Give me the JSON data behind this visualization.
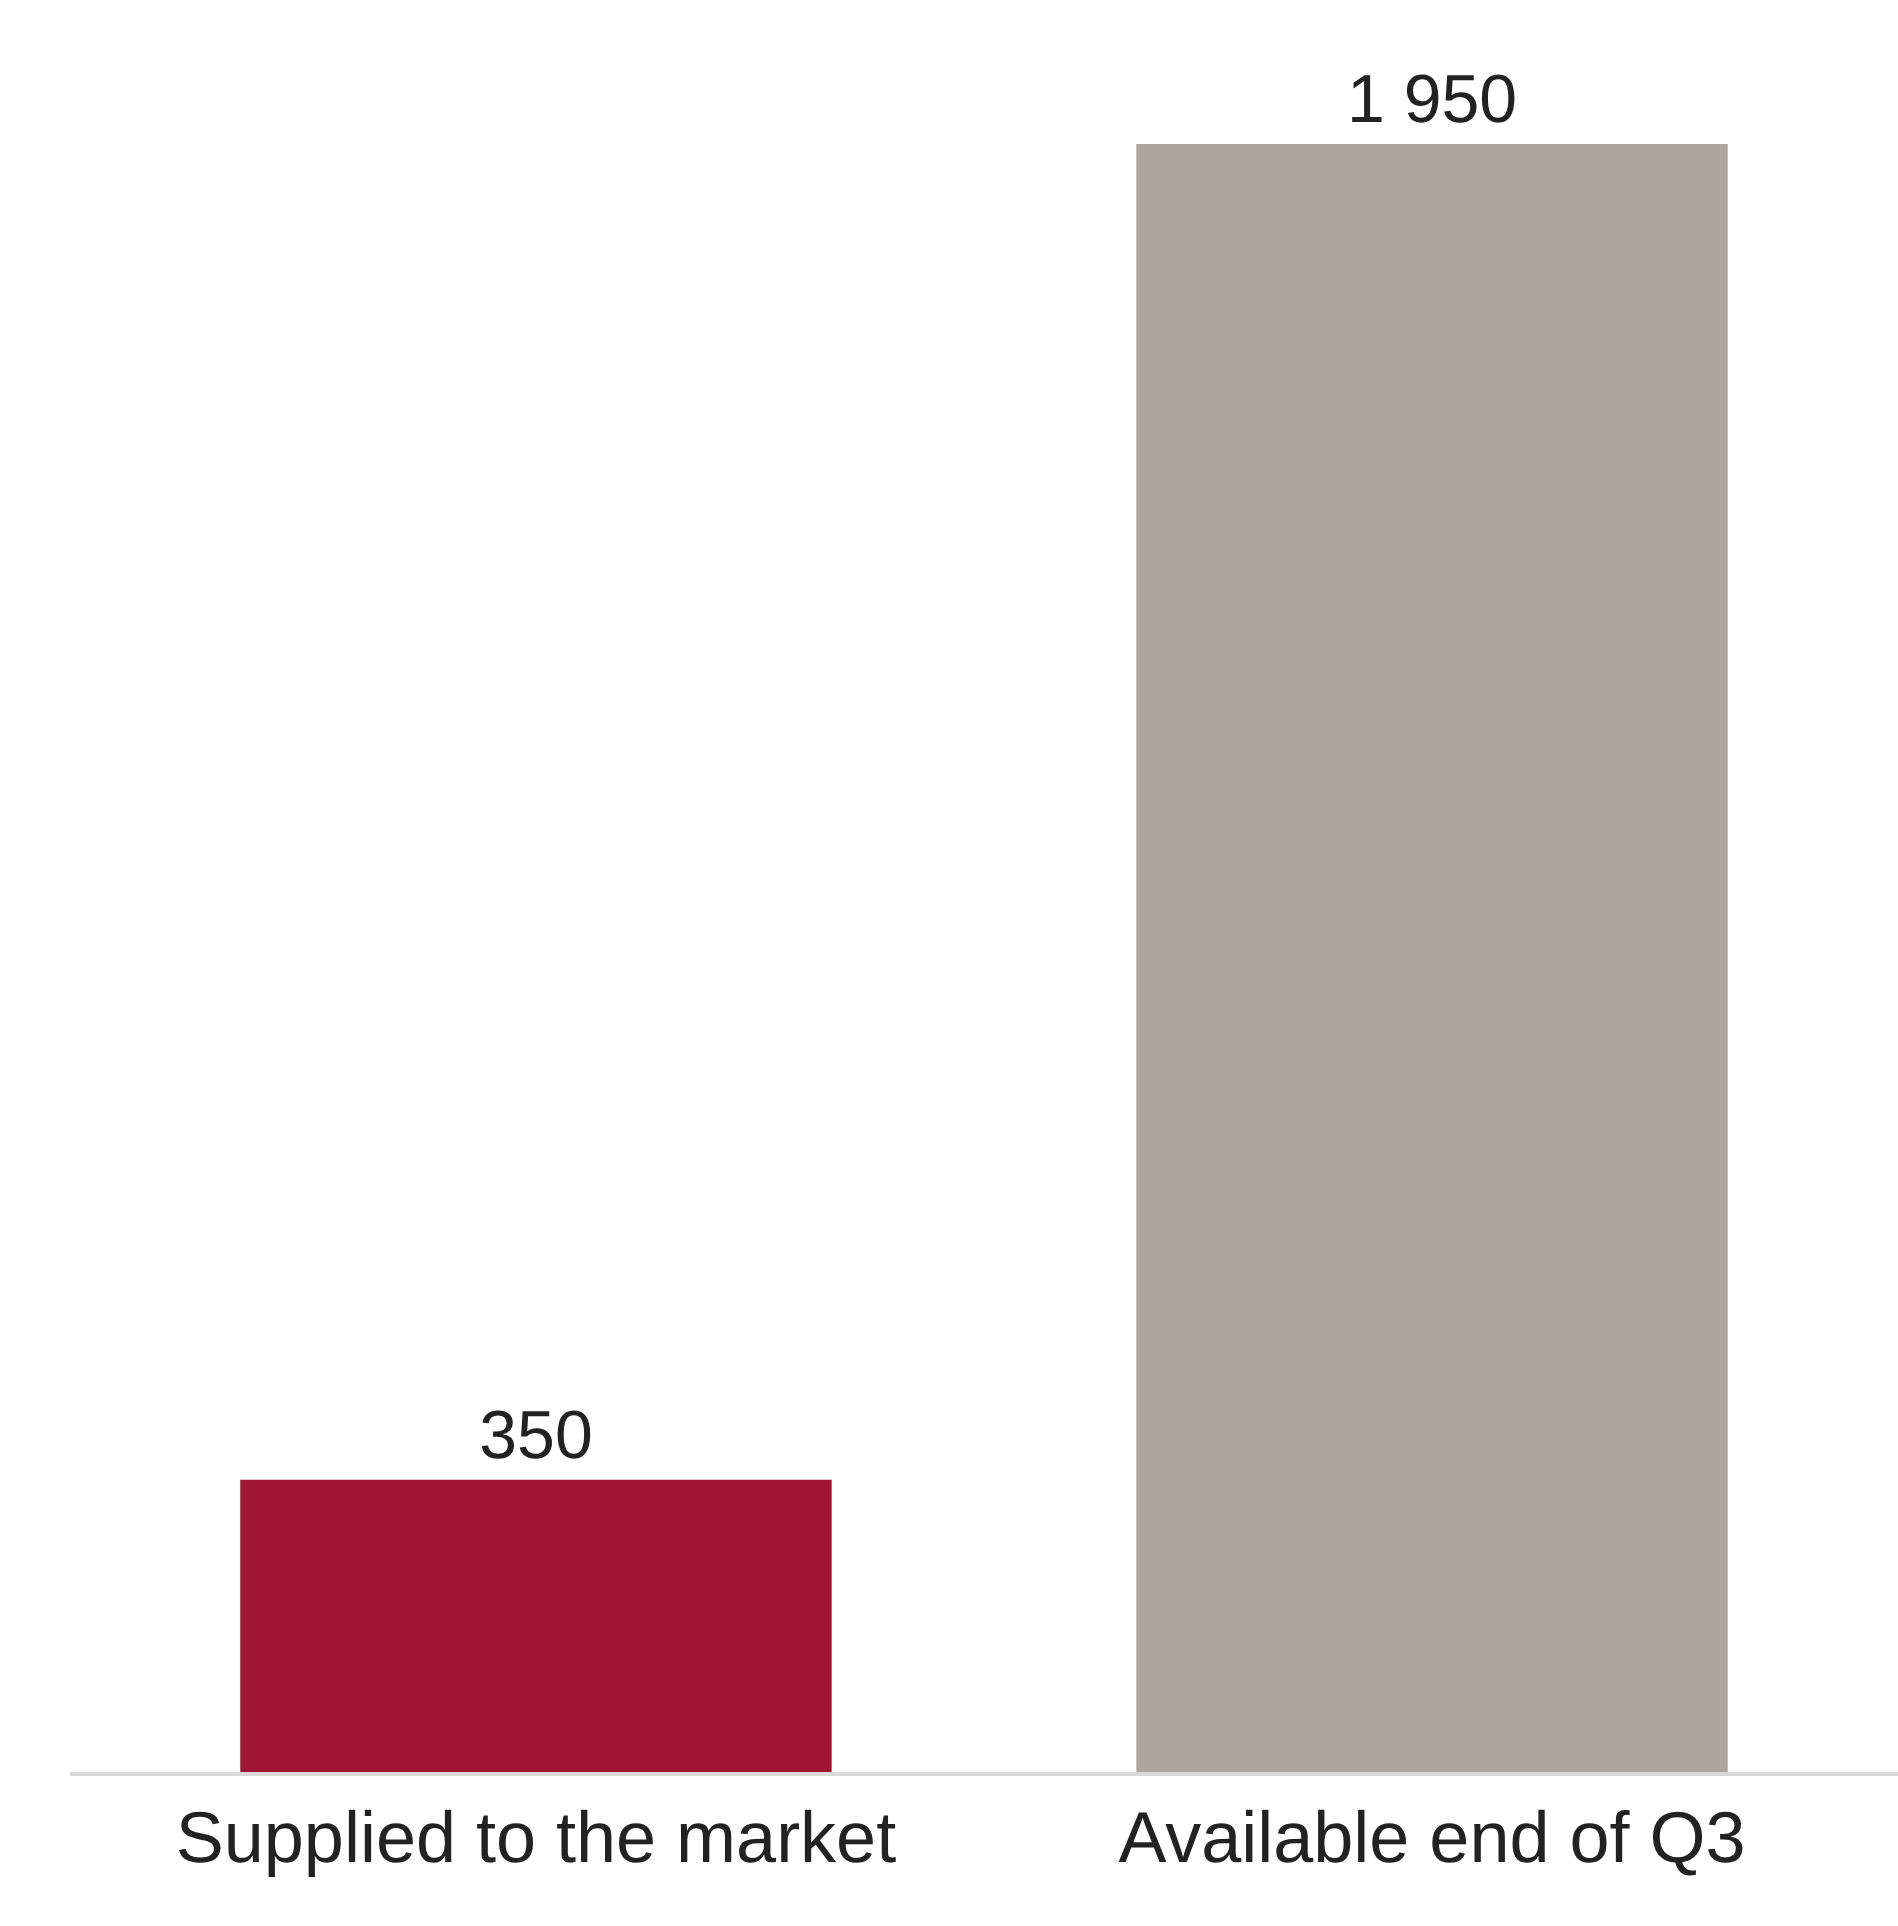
{
  "chart_data": {
    "type": "bar",
    "categories": [
      "Supplied to the market",
      "Available end of Q3"
    ],
    "values": [
      350,
      1950
    ],
    "colors": [
      "#a01733",
      "#aea59f"
    ],
    "value_labels": [
      "350",
      "1 950"
    ],
    "legend": false
  }
}
